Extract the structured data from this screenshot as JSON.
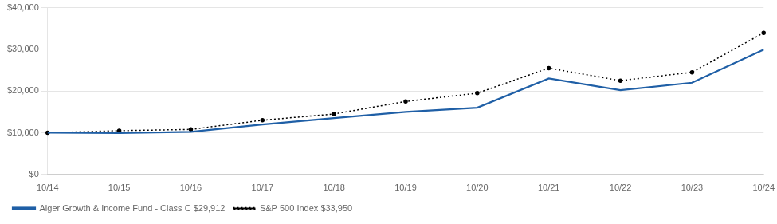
{
  "chart_data": {
    "type": "line",
    "categories": [
      "10/14",
      "10/15",
      "10/16",
      "10/17",
      "10/18",
      "10/19",
      "10/20",
      "10/21",
      "10/22",
      "10/23",
      "10/24"
    ],
    "series": [
      {
        "name": "Alger Growth & Income Fund - Class C $29,912",
        "color": "#1F5FA6",
        "line_style": "solid",
        "marker": "none",
        "values": [
          10000,
          9900,
          10200,
          12000,
          13500,
          15000,
          16000,
          23000,
          20200,
          22000,
          29912
        ]
      },
      {
        "name": "S&P 500 Index $33,950",
        "color": "#000000",
        "line_style": "dotted",
        "marker": "point",
        "values": [
          10000,
          10500,
          10800,
          13000,
          14500,
          17500,
          19500,
          25500,
          22500,
          24500,
          33950
        ]
      }
    ],
    "ylim": [
      0,
      40000
    ],
    "yticks": [
      {
        "value": 0,
        "label": "$0"
      },
      {
        "value": 10000,
        "label": "$10,000"
      },
      {
        "value": 20000,
        "label": "$20,000"
      },
      {
        "value": 30000,
        "label": "$30,000"
      },
      {
        "value": 40000,
        "label": "$40,000"
      }
    ],
    "grid": "y",
    "legend": "bottom left"
  }
}
